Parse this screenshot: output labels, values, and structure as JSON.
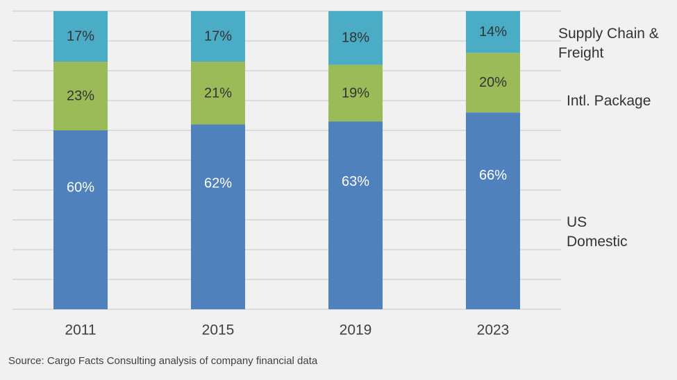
{
  "chart_data": {
    "type": "bar",
    "stacked": true,
    "categories": [
      "2011",
      "2015",
      "2019",
      "2023"
    ],
    "series": [
      {
        "name": "US Domestic",
        "values": [
          60,
          62,
          63,
          66
        ],
        "labels": [
          "60%",
          "62%",
          "63%",
          "66%"
        ],
        "color": "#4f81bd",
        "label_color": "#ffffff"
      },
      {
        "name": "Intl. Package",
        "values": [
          23,
          21,
          19,
          20
        ],
        "labels": [
          "23%",
          "21%",
          "19%",
          "20%"
        ],
        "color": "#9bbb59",
        "label_color": "#333333"
      },
      {
        "name": "Supply Chain & Freight",
        "values": [
          17,
          17,
          18,
          14
        ],
        "labels": [
          "17%",
          "17%",
          "18%",
          "14%"
        ],
        "color": "#4bacc6",
        "label_color": "#333333"
      }
    ],
    "legend_labels": [
      {
        "series": "Supply Chain & Freight",
        "lines": [
          "Supply Chain &",
          "Freight"
        ]
      },
      {
        "series": "Intl. Package",
        "lines": [
          "Intl. Package"
        ]
      },
      {
        "series": "US Domestic",
        "lines": [
          "US",
          "Domestic"
        ]
      }
    ],
    "legend_position": "right",
    "ylim": [
      0,
      100
    ],
    "grid": true,
    "title": "",
    "xlabel": "",
    "ylabel": ""
  },
  "source_note": "Source: Cargo Facts Consulting analysis of company financial data",
  "colors": {
    "background": "#f1f1f1",
    "gridline": "#c8c8c8",
    "axis_text": "#404040"
  }
}
